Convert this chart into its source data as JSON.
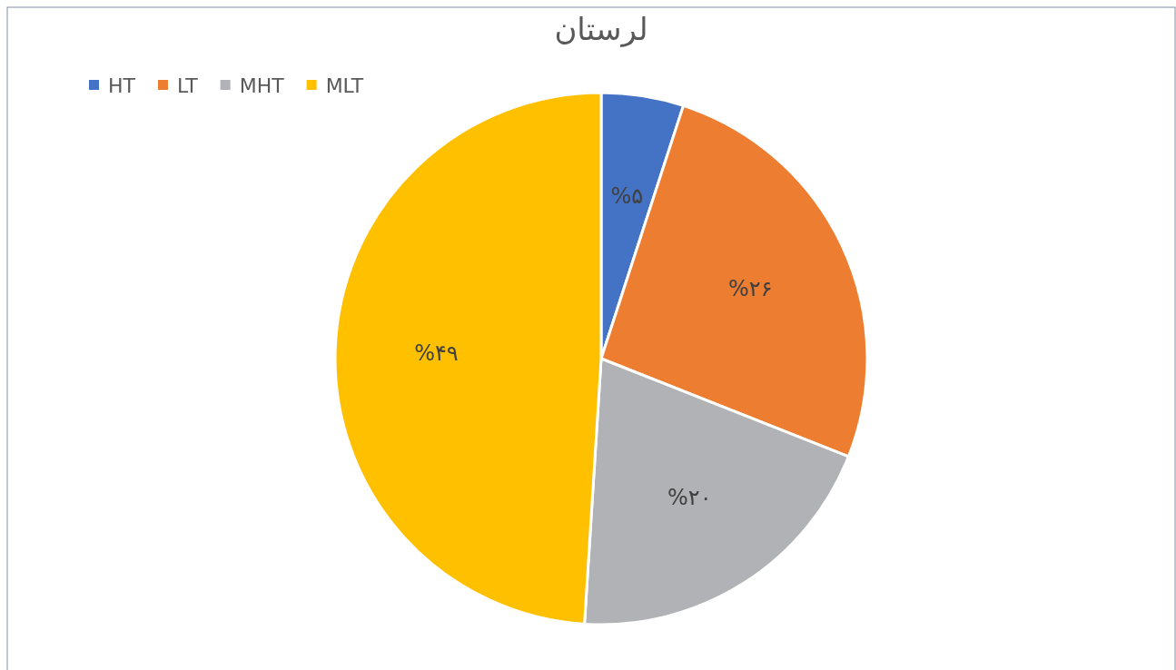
{
  "chart_data": {
    "type": "pie",
    "title": "لرستان",
    "categories": [
      "HT",
      "LT",
      "MHT",
      "MLT"
    ],
    "values": [
      5,
      26,
      20,
      49
    ],
    "colors": [
      "#4472c4",
      "#ed7d31",
      "#b1b2b5",
      "#ffc000"
    ],
    "value_labels": [
      "%۵",
      "%۲۶",
      "%۲۰",
      "%۴۹"
    ],
    "legend": "top left"
  }
}
